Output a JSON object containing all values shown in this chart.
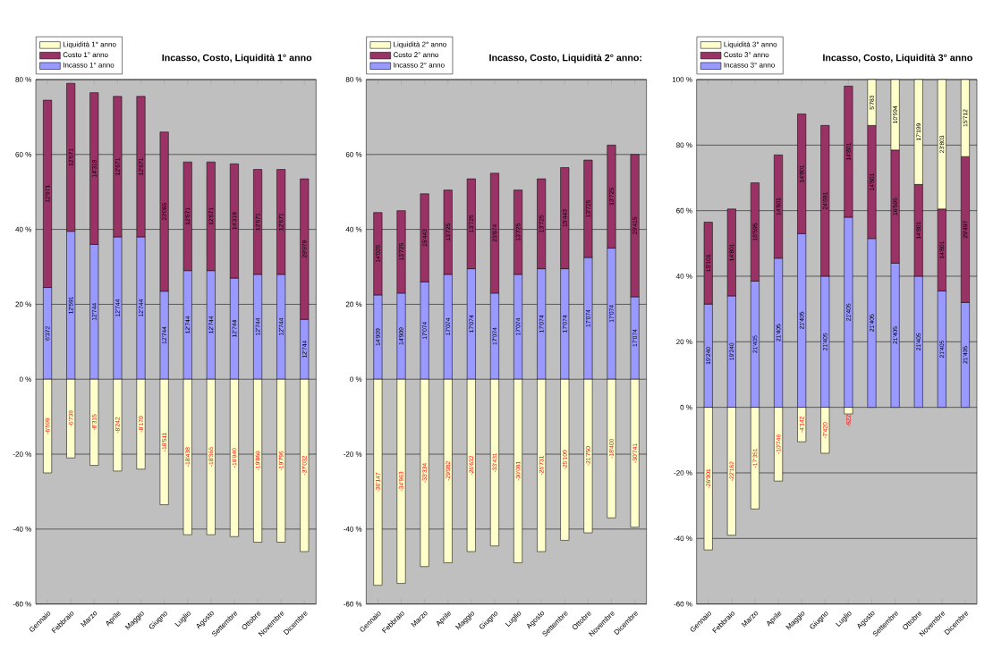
{
  "chart_data": [
    {
      "type": "bar",
      "title": "Incasso, Costo, Liquidità 1° anno",
      "stacked": true,
      "grid": "y",
      "legend": "top left",
      "categories": [
        "Gennaio",
        "Febbraio",
        "Marzo",
        "Aprile",
        "Maggio",
        "Giugno",
        "Luglio",
        "Agosto",
        "Settembre",
        "Ottobre",
        "Novembre",
        "Dicembre"
      ],
      "ylim": [
        -60,
        80
      ],
      "yticks": [
        {
          "value": -60,
          "label": "-60 %"
        },
        {
          "value": -40,
          "label": "-40 %"
        },
        {
          "value": -20,
          "label": "-20 %"
        },
        {
          "value": 0,
          "label": "0 %"
        },
        {
          "value": 20,
          "label": "20 %"
        },
        {
          "value": 40,
          "label": "40 %"
        },
        {
          "value": 60,
          "label": "60 %"
        },
        {
          "value": 80,
          "label": "80 %"
        }
      ],
      "series": [
        {
          "name": "Incasso 1° anno",
          "color": "#9999ff",
          "values": [
            24.5,
            39.5,
            36,
            38,
            38,
            23.5,
            29,
            29,
            27,
            28,
            28,
            16
          ]
        },
        {
          "name": "Costo 1° anno",
          "color": "#993366",
          "values": [
            50,
            39.5,
            40.5,
            37.5,
            37.5,
            42.5,
            29,
            29,
            30.5,
            28,
            28,
            37.5
          ]
        },
        {
          "name": "Liquidità 1° anno",
          "color": "#ffffcc",
          "values": [
            -25,
            -21,
            -23,
            -24.5,
            -24,
            -33.5,
            -41.5,
            -41.5,
            -42,
            -43.5,
            -43.5,
            -46
          ]
        }
      ],
      "annotations": [
        {
          "text": "6'372",
          "x": "Gennaio",
          "y": 12.25
        },
        {
          "text": "12'591",
          "x": "Febbraio",
          "y": 19.75
        },
        {
          "text": "12'744",
          "x": "Marzo",
          "y": 18
        },
        {
          "text": "12'744",
          "x": "Aprile",
          "y": 19
        },
        {
          "text": "12'744",
          "x": "Maggio",
          "y": 19
        },
        {
          "text": "12'744",
          "x": "Giugno",
          "y": 11.75
        },
        {
          "text": "12'744",
          "x": "Luglio",
          "y": 14.5
        },
        {
          "text": "12'744",
          "x": "Agosto",
          "y": 14.5
        },
        {
          "text": "12'744",
          "x": "Settembre",
          "y": 13.5
        },
        {
          "text": "12'744",
          "x": "Ottobre",
          "y": 14
        },
        {
          "text": "12'744",
          "x": "Novembre",
          "y": 14
        },
        {
          "text": "12'744",
          "x": "Dicembre",
          "y": 8
        },
        {
          "text": "12'971",
          "x": "Gennaio",
          "y": 49.5
        },
        {
          "text": "12'671",
          "x": "Febbraio",
          "y": 59.25
        },
        {
          "text": "14'319",
          "x": "Marzo",
          "y": 56.25
        },
        {
          "text": "12'671",
          "x": "Aprile",
          "y": 56.75
        },
        {
          "text": "12'671",
          "x": "Maggio",
          "y": 56.75
        },
        {
          "text": "23'085",
          "x": "Giugno",
          "y": 44.75
        },
        {
          "text": "12'671",
          "x": "Luglio",
          "y": 43.5
        },
        {
          "text": "12'671",
          "x": "Agosto",
          "y": 43.5
        },
        {
          "text": "14'319",
          "x": "Settembre",
          "y": 42.25
        },
        {
          "text": "12'671",
          "x": "Ottobre",
          "y": 42
        },
        {
          "text": "12'671",
          "x": "Novembre",
          "y": 42
        },
        {
          "text": "29'979",
          "x": "Dicembre",
          "y": 34.75
        },
        {
          "text": "-6'599",
          "x": "Gennaio",
          "y": -12.5
        },
        {
          "text": "-6'739",
          "x": "Febbraio",
          "y": -10.5
        },
        {
          "text": "-8'315",
          "x": "Marzo",
          "y": -11.5
        },
        {
          "text": "-8'242",
          "x": "Aprile",
          "y": -12.25
        },
        {
          "text": "-8'170",
          "x": "Maggio",
          "y": -12
        },
        {
          "text": "-18'511",
          "x": "Giugno",
          "y": -16.75
        },
        {
          "text": "-18'438",
          "x": "Luglio",
          "y": -20.75
        },
        {
          "text": "-18'366",
          "x": "Agosto",
          "y": -20.75
        },
        {
          "text": "-19'940",
          "x": "Settembre",
          "y": -21
        },
        {
          "text": "-19'869",
          "x": "Ottobre",
          "y": -21.75
        },
        {
          "text": "-19'796",
          "x": "Novembre",
          "y": -21.75
        },
        {
          "text": "-37'032",
          "x": "Dicembre",
          "y": -23
        }
      ]
    },
    {
      "type": "bar",
      "title": "Incasso, Costo, Liquidità 2° anno:",
      "stacked": true,
      "grid": "y",
      "legend": "top left",
      "categories": [
        "Gennaio",
        "Febbraio",
        "Marzo",
        "Aprile",
        "Maggio",
        "Giugno",
        "Luglio",
        "Agosto",
        "Settembre",
        "Ottobre",
        "Novembre",
        "Dicembre"
      ],
      "ylim": [
        -60,
        80
      ],
      "yticks": [
        {
          "value": -60,
          "label": "-60 %"
        },
        {
          "value": -40,
          "label": "-40 %"
        },
        {
          "value": -20,
          "label": "-20 %"
        },
        {
          "value": 0,
          "label": "0 %"
        },
        {
          "value": 20,
          "label": "20 %"
        },
        {
          "value": 40,
          "label": "40 %"
        },
        {
          "value": 60,
          "label": "60 %"
        },
        {
          "value": 80,
          "label": "80 %"
        }
      ],
      "series": [
        {
          "name": "Incasso 2° anno",
          "color": "#9999ff",
          "values": [
            22.5,
            23,
            26,
            28,
            29.5,
            23,
            28,
            29.5,
            29.5,
            32.5,
            35,
            22
          ]
        },
        {
          "name": "Costo 2° anno",
          "color": "#993366",
          "values": [
            22,
            22,
            23.5,
            22.5,
            24,
            32,
            22.5,
            24,
            27,
            26,
            27.5,
            38
          ]
        },
        {
          "name": "Liquidità 2° anno",
          "color": "#ffffcc",
          "values": [
            -55,
            -54.5,
            -50,
            -49,
            -46,
            -44.5,
            -49,
            -46,
            -43,
            -41,
            -37,
            -39.5
          ]
        }
      ],
      "annotations": [
        {
          "text": "14'909",
          "x": "Gennaio",
          "y": 11.25
        },
        {
          "text": "14'909",
          "x": "Febbraio",
          "y": 11.5
        },
        {
          "text": "17'074",
          "x": "Marzo",
          "y": 13
        },
        {
          "text": "17'074",
          "x": "Aprile",
          "y": 14
        },
        {
          "text": "17'074",
          "x": "Maggio",
          "y": 14.75
        },
        {
          "text": "17'074",
          "x": "Giugno",
          "y": 11.5
        },
        {
          "text": "17'074",
          "x": "Luglio",
          "y": 14
        },
        {
          "text": "17'074",
          "x": "Agosto",
          "y": 14.75
        },
        {
          "text": "17'074",
          "x": "Settembre",
          "y": 14.75
        },
        {
          "text": "17'074",
          "x": "Ottobre",
          "y": 16.25
        },
        {
          "text": "17'074",
          "x": "Novembre",
          "y": 17.5
        },
        {
          "text": "17'074",
          "x": "Dicembre",
          "y": 11
        },
        {
          "text": "14'026",
          "x": "Gennaio",
          "y": 33.5
        },
        {
          "text": "13'725",
          "x": "Febbraio",
          "y": 34
        },
        {
          "text": "15'443",
          "x": "Marzo",
          "y": 37.75
        },
        {
          "text": "13'725",
          "x": "Aprile",
          "y": 39.25
        },
        {
          "text": "13'725",
          "x": "Maggio",
          "y": 41.5
        },
        {
          "text": "23'874",
          "x": "Giugno",
          "y": 39
        },
        {
          "text": "13'725",
          "x": "Luglio",
          "y": 39.25
        },
        {
          "text": "13'725",
          "x": "Agosto",
          "y": 41.5
        },
        {
          "text": "15'443",
          "x": "Settembre",
          "y": 43
        },
        {
          "text": "13'725",
          "x": "Ottobre",
          "y": 45.5
        },
        {
          "text": "13'725",
          "x": "Novembre",
          "y": 48.75
        },
        {
          "text": "29'415",
          "x": "Dicembre",
          "y": 41
        },
        {
          "text": "-36'147",
          "x": "Gennaio",
          "y": -27.5
        },
        {
          "text": "-34'963",
          "x": "Febbraio",
          "y": -27.25
        },
        {
          "text": "-33'334",
          "x": "Marzo",
          "y": -25
        },
        {
          "text": "-29'982",
          "x": "Aprile",
          "y": -24.5
        },
        {
          "text": "-26'632",
          "x": "Maggio",
          "y": -23
        },
        {
          "text": "-33'431",
          "x": "Giugno",
          "y": -22.25
        },
        {
          "text": "-30'081",
          "x": "Luglio",
          "y": -24.5
        },
        {
          "text": "-26'731",
          "x": "Agosto",
          "y": -23
        },
        {
          "text": "-25'100",
          "x": "Settembre",
          "y": -21.5
        },
        {
          "text": "-21'750",
          "x": "Ottobre",
          "y": -20.5
        },
        {
          "text": "-18'400",
          "x": "Novembre",
          "y": -18.5
        },
        {
          "text": "-30'741",
          "x": "Dicembre",
          "y": -19.75
        }
      ]
    },
    {
      "type": "bar",
      "title": "Incasso, Costo, Liquidità 3° anno",
      "stacked": true,
      "grid": "y",
      "legend": "top left",
      "categories": [
        "Gennaio",
        "Febbraio",
        "Marzo",
        "Aprile",
        "Maggio",
        "Giugno",
        "Luglio",
        "Agosto",
        "Settembre",
        "Ottobre",
        "Novembre",
        "Dicembre"
      ],
      "ylim": [
        -60,
        100
      ],
      "yticks": [
        {
          "value": -60,
          "label": "-60 %"
        },
        {
          "value": -40,
          "label": "-40 %"
        },
        {
          "value": -20,
          "label": "-20 %"
        },
        {
          "value": 0,
          "label": "0 %"
        },
        {
          "value": 20,
          "label": "20 %"
        },
        {
          "value": 40,
          "label": "40 %"
        },
        {
          "value": 60,
          "label": "60 %"
        },
        {
          "value": 80,
          "label": "80 %"
        },
        {
          "value": 100,
          "label": "100 %"
        }
      ],
      "series": [
        {
          "name": "Incasso 3° anno",
          "color": "#9999ff",
          "values": [
            31.5,
            34,
            38.5,
            45.5,
            53,
            40,
            58,
            51.5,
            44,
            40,
            35.5,
            32
          ]
        },
        {
          "name": "Costo 3° anno",
          "color": "#993366",
          "values": [
            25,
            26.5,
            30,
            31.5,
            36.5,
            46,
            40,
            34.5,
            34.5,
            28,
            25,
            44.5
          ]
        },
        {
          "name": "Liquidità 3° anno",
          "color": "#ffffcc",
          "values": [
            -43.5,
            -39,
            -31,
            -22.5,
            -10.5,
            -14,
            -2,
            14,
            21.5,
            32,
            39.5,
            23.5
          ]
        }
      ],
      "annotations": [
        {
          "text": "19'240",
          "x": "Gennaio",
          "y": 15.75
        },
        {
          "text": "19'240",
          "x": "Febbraio",
          "y": 17
        },
        {
          "text": "21'405",
          "x": "Marzo",
          "y": 19.25
        },
        {
          "text": "21'405",
          "x": "Aprile",
          "y": 22.75
        },
        {
          "text": "21'405",
          "x": "Maggio",
          "y": 26.5
        },
        {
          "text": "21'405",
          "x": "Giugno",
          "y": 20
        },
        {
          "text": "21'405",
          "x": "Luglio",
          "y": 29
        },
        {
          "text": "21'405",
          "x": "Agosto",
          "y": 25.75
        },
        {
          "text": "21'405",
          "x": "Settembre",
          "y": 22
        },
        {
          "text": "21'405",
          "x": "Ottobre",
          "y": 20
        },
        {
          "text": "21'405",
          "x": "Novembre",
          "y": 17.75
        },
        {
          "text": "21'405",
          "x": "Dicembre",
          "y": 16
        },
        {
          "text": "15'101",
          "x": "Gennaio",
          "y": 44
        },
        {
          "text": "14'801",
          "x": "Febbraio",
          "y": 47.25
        },
        {
          "text": "16'595",
          "x": "Marzo",
          "y": 53.5
        },
        {
          "text": "14'801",
          "x": "Aprile",
          "y": 61.25
        },
        {
          "text": "14'801",
          "x": "Maggio",
          "y": 71.25
        },
        {
          "text": "24'691",
          "x": "Giugno",
          "y": 63
        },
        {
          "text": "14'801",
          "x": "Luglio",
          "y": 78
        },
        {
          "text": "14'801",
          "x": "Agosto",
          "y": 68.75
        },
        {
          "text": "16'595",
          "x": "Settembre",
          "y": 61.25
        },
        {
          "text": "14'801",
          "x": "Ottobre",
          "y": 54
        },
        {
          "text": "14'801",
          "x": "Novembre",
          "y": 48
        },
        {
          "text": "29'497",
          "x": "Dicembre",
          "y": 54.25
        },
        {
          "text": "-26'001",
          "x": "Gennaio",
          "y": -21.75
        },
        {
          "text": "-22'162",
          "x": "Febbraio",
          "y": -19.5
        },
        {
          "text": "-17'351",
          "x": "Marzo",
          "y": -15.5
        },
        {
          "text": "-10'746",
          "x": "Aprile",
          "y": -11.25
        },
        {
          "text": "-4'142",
          "x": "Maggio",
          "y": -5.25
        },
        {
          "text": "-7'420",
          "x": "Giugno",
          "y": -7
        },
        {
          "text": "-822",
          "x": "Luglio",
          "y": -2
        },
        {
          "text": "5'783",
          "x": "Agosto",
          "y": 93
        },
        {
          "text": "10'594",
          "x": "Settembre",
          "y": 89.25
        },
        {
          "text": "17'199",
          "x": "Ottobre",
          "y": 84
        },
        {
          "text": "23'803",
          "x": "Novembre",
          "y": 80.25
        },
        {
          "text": "15'712",
          "x": "Dicembre",
          "y": 88.25
        }
      ]
    }
  ]
}
